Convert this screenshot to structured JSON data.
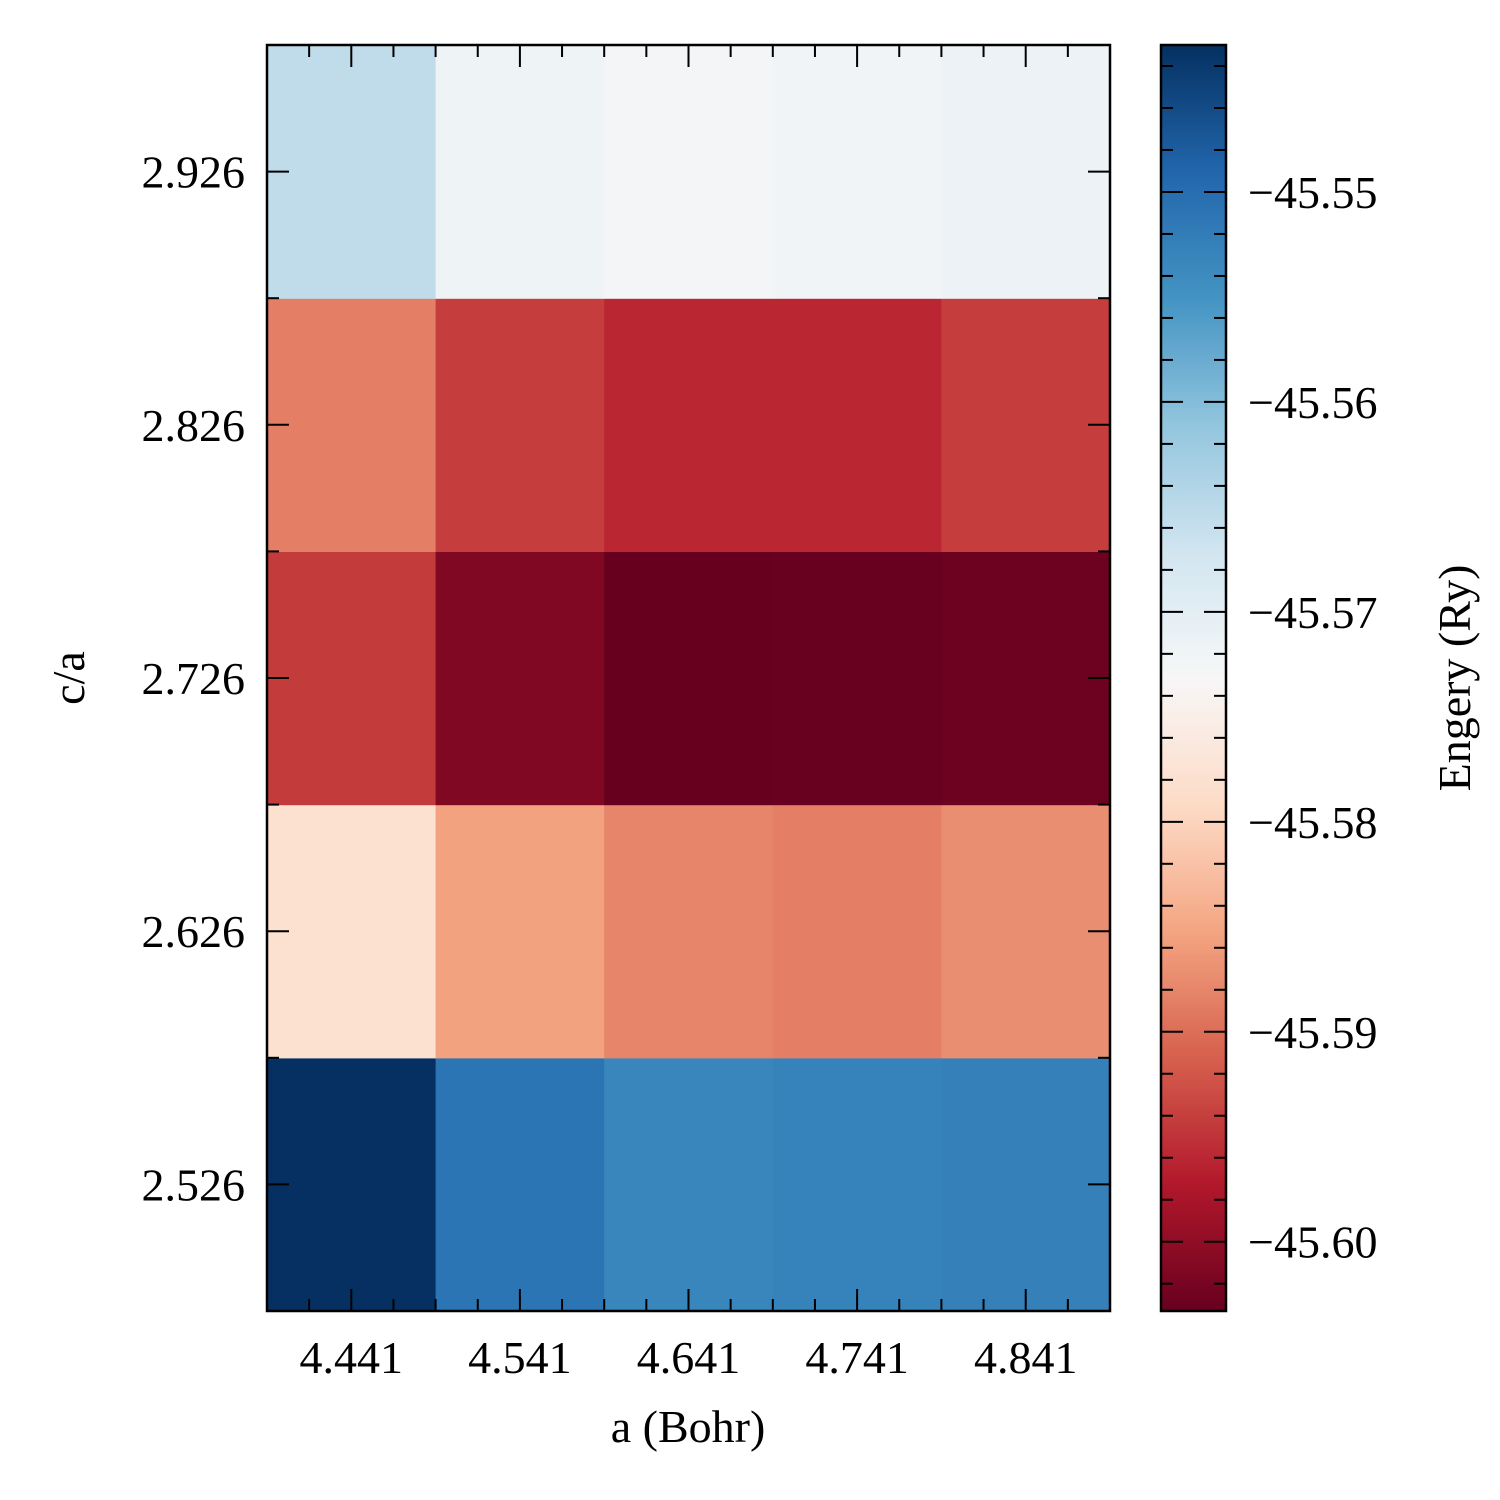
{
  "chart_data": {
    "type": "heatmap",
    "title": "",
    "xlabel": "a (Bohr)",
    "ylabel": "c/a",
    "x": [
      4.441,
      4.541,
      4.641,
      4.741,
      4.841
    ],
    "x_tick_labels": [
      "4.441",
      "4.541",
      "4.641",
      "4.741",
      "4.841"
    ],
    "y": [
      2.526,
      2.626,
      2.726,
      2.826,
      2.926
    ],
    "y_tick_labels": [
      "2.526",
      "2.626",
      "2.726",
      "2.826",
      "2.926"
    ],
    "values": [
      [
        -45.543,
        -45.551,
        -45.5533,
        -45.5528,
        -45.5525
      ],
      [
        -45.5781,
        -45.5855,
        -45.588,
        -45.5885,
        -45.5872
      ],
      [
        -45.5943,
        -45.6012,
        -45.6033,
        -45.6032,
        -45.6028
      ],
      [
        -45.5885,
        -45.5941,
        -45.596,
        -45.596,
        -45.5941
      ],
      [
        -45.5655,
        -45.5718,
        -45.5725,
        -45.5722,
        -45.5714
      ]
    ],
    "colorbar": {
      "label": "Engery (Ry)",
      "colormap": "RdBu",
      "vmin": -45.6033,
      "vmax": -45.543,
      "ticks": [
        -45.6,
        -45.59,
        -45.58,
        -45.57,
        -45.56,
        -45.55
      ],
      "tick_labels": [
        "−45.60",
        "−45.59",
        "−45.58",
        "−45.57",
        "−45.56",
        "−45.55"
      ]
    },
    "grid": false,
    "legend": "none"
  }
}
